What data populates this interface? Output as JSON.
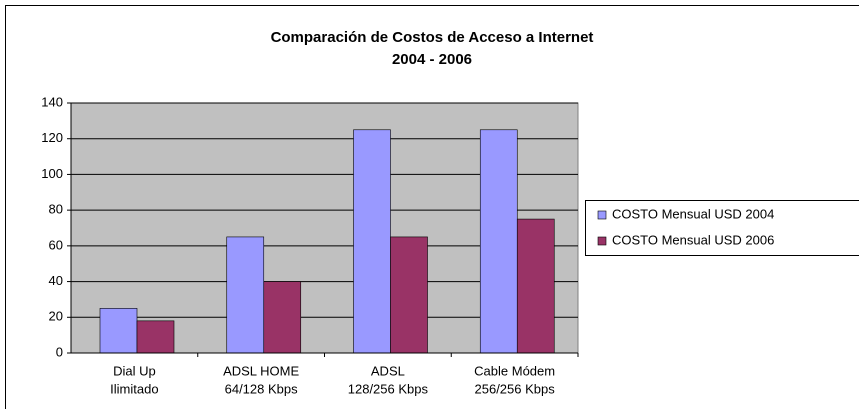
{
  "chart_data": {
    "type": "bar",
    "title": [
      "Comparación de Costos de Acceso a Internet",
      "2004 - 2006"
    ],
    "categories": [
      [
        "Dial Up",
        "Ilimitado"
      ],
      [
        "ADSL HOME",
        "64/128 Kbps"
      ],
      [
        "ADSL",
        "128/256 Kbps"
      ],
      [
        "Cable Módem",
        "256/256 Kbps"
      ]
    ],
    "series": [
      {
        "name": "COSTO Mensual  USD 2004",
        "color": "#9999ff",
        "values": [
          25,
          65,
          125,
          125
        ]
      },
      {
        "name": "COSTO Mensual USD 2006",
        "color": "#993366",
        "values": [
          18,
          40,
          65,
          75
        ]
      }
    ],
    "ylim": [
      0,
      140
    ],
    "yticks": [
      0,
      20,
      40,
      60,
      80,
      100,
      120,
      140
    ],
    "grid": true,
    "legend": "right"
  }
}
